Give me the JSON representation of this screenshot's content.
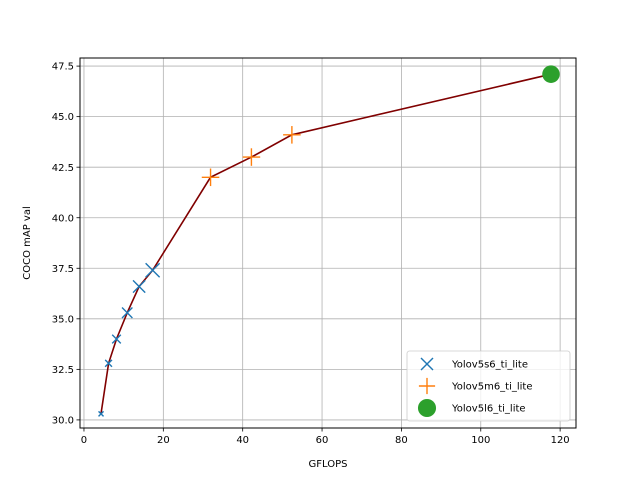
{
  "chart_data": {
    "type": "scatter",
    "title": "",
    "xlabel": "GFLOPS",
    "ylabel": "COCO mAP val",
    "xlim": [
      -1,
      124
    ],
    "ylim": [
      29.6,
      47.9
    ],
    "xticks": [
      "0",
      "20",
      "40",
      "60",
      "80",
      "100",
      "120"
    ],
    "yticks": [
      "30.0",
      "32.5",
      "35.0",
      "37.5",
      "40.0",
      "42.5",
      "45.0",
      "47.5"
    ],
    "grid": true,
    "legend_position": "lower-right",
    "series": [
      {
        "name": "Yolov5s6_ti_lite",
        "marker": "x",
        "color": "#1f77b4",
        "points": [
          [
            4.3,
            30.3
          ],
          [
            6.2,
            32.8
          ],
          [
            8.2,
            34.0
          ],
          [
            10.9,
            35.3
          ],
          [
            13.9,
            36.6
          ],
          [
            17.3,
            37.4
          ]
        ]
      },
      {
        "name": "Yolov5m6_ti_lite",
        "marker": "+",
        "color": "#ff7f0e",
        "points": [
          [
            31.9,
            42.0
          ],
          [
            42.2,
            43.0
          ],
          [
            52.4,
            44.1
          ]
        ]
      },
      {
        "name": "Yolov5l6_ti_lite",
        "marker": "o",
        "color": "#2ca02c",
        "points": [
          [
            117.7,
            47.1
          ]
        ]
      }
    ],
    "curve": {
      "color": "#800000",
      "points": [
        [
          4.3,
          30.3
        ],
        [
          6.2,
          32.8
        ],
        [
          8.2,
          34.0
        ],
        [
          10.9,
          35.3
        ],
        [
          13.9,
          36.6
        ],
        [
          17.3,
          37.4
        ],
        [
          31.9,
          42.0
        ],
        [
          42.2,
          43.0
        ],
        [
          52.4,
          44.1
        ],
        [
          117.7,
          47.1
        ]
      ]
    }
  }
}
